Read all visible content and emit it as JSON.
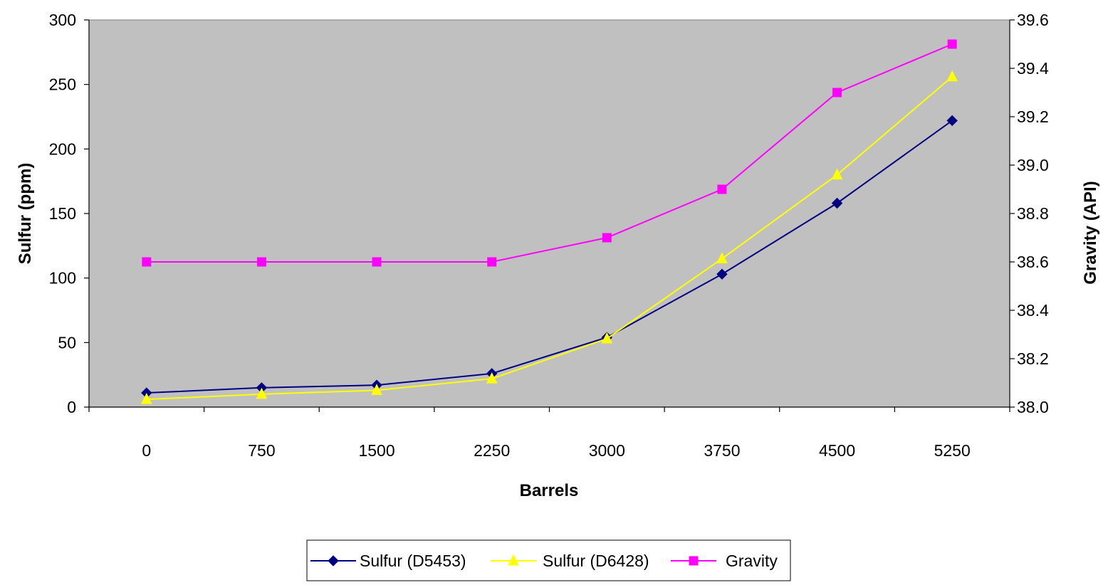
{
  "chart_data": {
    "type": "line",
    "title": "",
    "xlabel": "Barrels",
    "ylabel": "Sulfur (ppm)",
    "y2label": "Gravity (API)",
    "categories": [
      "0",
      "750",
      "1500",
      "2250",
      "3000",
      "3750",
      "4500",
      "5250"
    ],
    "ylim": [
      0,
      300
    ],
    "y_ticks": [
      "0",
      "50",
      "100",
      "150",
      "200",
      "250",
      "300"
    ],
    "y2lim": [
      38.0,
      39.6
    ],
    "y2_ticks": [
      "38.0",
      "38.2",
      "38.4",
      "38.6",
      "38.8",
      "39.0",
      "39.2",
      "39.4",
      "39.6"
    ],
    "plot_background": "#C0C0C0",
    "grid": false,
    "legend_position": "bottom",
    "series": [
      {
        "name": "Sulfur (D5453)",
        "axis": "left",
        "color": "#000080",
        "marker": "diamond",
        "values": [
          11,
          15,
          17,
          26,
          54,
          103,
          158,
          222
        ]
      },
      {
        "name": "Sulfur (D6428)",
        "axis": "left",
        "color": "#FFFF00",
        "marker": "triangle",
        "values": [
          6,
          10,
          13,
          22,
          53,
          115,
          180,
          256
        ]
      },
      {
        "name": "Gravity",
        "axis": "right",
        "color": "#FF00FF",
        "marker": "square",
        "values": [
          38.6,
          38.6,
          38.6,
          38.6,
          38.7,
          38.9,
          39.3,
          39.5
        ]
      }
    ]
  }
}
